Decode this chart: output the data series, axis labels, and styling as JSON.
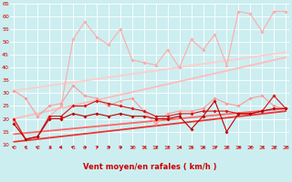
{
  "xlabel": "Vent moyen/en rafales ( km/h )",
  "bg_color": "#cceef0",
  "grid_color": "#b8d8da",
  "x": [
    0,
    1,
    2,
    3,
    4,
    5,
    6,
    7,
    8,
    9,
    10,
    11,
    12,
    13,
    14,
    15,
    16,
    17,
    18,
    19,
    20,
    21,
    22,
    23
  ],
  "series": [
    {
      "y": [
        19,
        12,
        13,
        21,
        25,
        51,
        58,
        52,
        49,
        55,
        43,
        42,
        41,
        47,
        40,
        51,
        47,
        53,
        41,
        62,
        61,
        54,
        62,
        62
      ],
      "color": "#ffaaaa",
      "lw": 0.8,
      "ms": 2.0
    },
    {
      "y": [
        31,
        28,
        21,
        25,
        26,
        33,
        29,
        28,
        25,
        27,
        28,
        23,
        18,
        22,
        23,
        23,
        24,
        28,
        26,
        25,
        28,
        29,
        25,
        24
      ],
      "color": "#ff9999",
      "lw": 0.8,
      "ms": 2.0
    },
    {
      "y": [
        20,
        12,
        13,
        21,
        21,
        25,
        25,
        27,
        26,
        25,
        24,
        23,
        21,
        21,
        22,
        22,
        23,
        23,
        23,
        22,
        22,
        23,
        29,
        24
      ],
      "color": "#dd1111",
      "lw": 0.8,
      "ms": 2.0
    },
    {
      "y": [
        18,
        12,
        13,
        20,
        20,
        22,
        21,
        22,
        21,
        22,
        21,
        21,
        20,
        20,
        21,
        16,
        21,
        27,
        15,
        22,
        22,
        23,
        24,
        24
      ],
      "color": "#bb0000",
      "lw": 0.8,
      "ms": 2.0
    }
  ],
  "trend_lines": [
    {
      "x0": 0,
      "x1": 23,
      "y0": 31,
      "y1": 46,
      "color": "#ffcccc",
      "lw": 1.3
    },
    {
      "x0": 0,
      "x1": 23,
      "y0": 20,
      "y1": 44,
      "color": "#ffbbbb",
      "lw": 1.3
    },
    {
      "x0": 0,
      "x1": 23,
      "y0": 14,
      "y1": 24,
      "color": "#ff6666",
      "lw": 1.3
    },
    {
      "x0": 0,
      "x1": 23,
      "y0": 11,
      "y1": 23,
      "color": "#ee3333",
      "lw": 1.3
    }
  ],
  "ylim": [
    10,
    65
  ],
  "xlim": [
    -0.3,
    23.3
  ],
  "yticks": [
    10,
    15,
    20,
    25,
    30,
    35,
    40,
    45,
    50,
    55,
    60,
    65
  ],
  "xticks": [
    0,
    1,
    2,
    3,
    4,
    5,
    6,
    7,
    8,
    9,
    10,
    11,
    12,
    13,
    14,
    15,
    16,
    17,
    18,
    19,
    20,
    21,
    22,
    23
  ],
  "font_color": "#cc0000",
  "tick_fontsize": 4.5,
  "xlabel_fontsize": 6.0,
  "arrows_angles": [
    225,
    210,
    225,
    270,
    315,
    315,
    45,
    45,
    45,
    45,
    45,
    45,
    45,
    45,
    45,
    45,
    45,
    45,
    45,
    45,
    45,
    45,
    45,
    45
  ]
}
